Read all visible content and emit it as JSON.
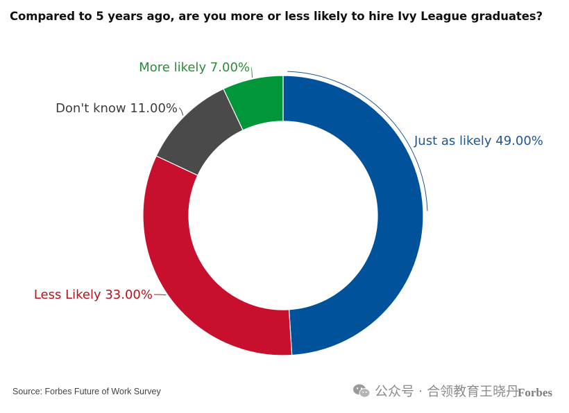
{
  "title": "Compared to 5 years ago, are you more or less likely to hire Ivy League graduates?",
  "source": "Source: Forbes Future of Work Survey",
  "watermark": {
    "text": "公众号 · 合领教育王晓丹",
    "brand": "Forbes",
    "icon": "wechat-icon"
  },
  "chart_data": {
    "type": "pie",
    "donut": true,
    "slices": [
      {
        "label": "Just as likely",
        "value": 49.0,
        "value_text": "49.00%",
        "color": "#00529b"
      },
      {
        "label": "Less Likely",
        "value": 33.0,
        "value_text": "33.00%",
        "color": "#c8102e"
      },
      {
        "label": "Don't know",
        "value": 11.0,
        "value_text": "11.00%",
        "color": "#4a4a4a"
      },
      {
        "label": "More likely",
        "value": 7.0,
        "value_text": "7.00%",
        "color": "#009639"
      }
    ],
    "label_text_colors": [
      "#1f5592",
      "#b5121b",
      "#3d3d3d",
      "#2e8b3a"
    ]
  }
}
